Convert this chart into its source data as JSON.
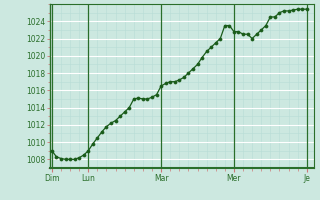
{
  "background_color": "#cce8e0",
  "line_color": "#1a5c1a",
  "marker_color": "#1a5c1a",
  "grid_major_color": "#ffffff",
  "grid_minor_color": "#b8ddd6",
  "axis_color": "#2a6e2a",
  "tick_color": "#cc7777",
  "ylim": [
    1007,
    1026
  ],
  "yticks": [
    1008,
    1010,
    1012,
    1014,
    1016,
    1018,
    1020,
    1022,
    1024
  ],
  "x_day_labels": [
    "Dim",
    "Lun",
    "Mar",
    "Mer",
    "Je"
  ],
  "x_day_positions": [
    0,
    8,
    24,
    40,
    56
  ],
  "vline_positions": [
    0,
    8,
    24,
    40,
    56
  ],
  "data_x": [
    0,
    1,
    2,
    3,
    4,
    5,
    6,
    7,
    8,
    9,
    10,
    11,
    12,
    13,
    14,
    15,
    16,
    17,
    18,
    19,
    20,
    21,
    22,
    23,
    24,
    25,
    26,
    27,
    28,
    29,
    30,
    31,
    32,
    33,
    34,
    35,
    36,
    37,
    38,
    39,
    40,
    41,
    42,
    43,
    44,
    45,
    46,
    47,
    48,
    49,
    50,
    51,
    52,
    53,
    54,
    55,
    56
  ],
  "data_y": [
    1009.0,
    1008.3,
    1008.1,
    1008.0,
    1008.0,
    1008.0,
    1008.2,
    1008.5,
    1009.0,
    1009.8,
    1010.5,
    1011.2,
    1011.8,
    1012.2,
    1012.5,
    1013.0,
    1013.5,
    1014.0,
    1015.0,
    1015.1,
    1015.0,
    1015.0,
    1015.2,
    1015.5,
    1016.5,
    1016.8,
    1017.0,
    1017.0,
    1017.2,
    1017.5,
    1018.0,
    1018.5,
    1019.0,
    1019.8,
    1020.5,
    1021.0,
    1021.5,
    1022.0,
    1023.5,
    1023.5,
    1022.8,
    1022.8,
    1022.5,
    1022.5,
    1022.0,
    1022.5,
    1023.0,
    1023.5,
    1024.5,
    1024.5,
    1025.0,
    1025.2,
    1025.2,
    1025.3,
    1025.4,
    1025.4,
    1025.4
  ],
  "xlim": [
    -0.5,
    57.5
  ],
  "total_points": 57
}
